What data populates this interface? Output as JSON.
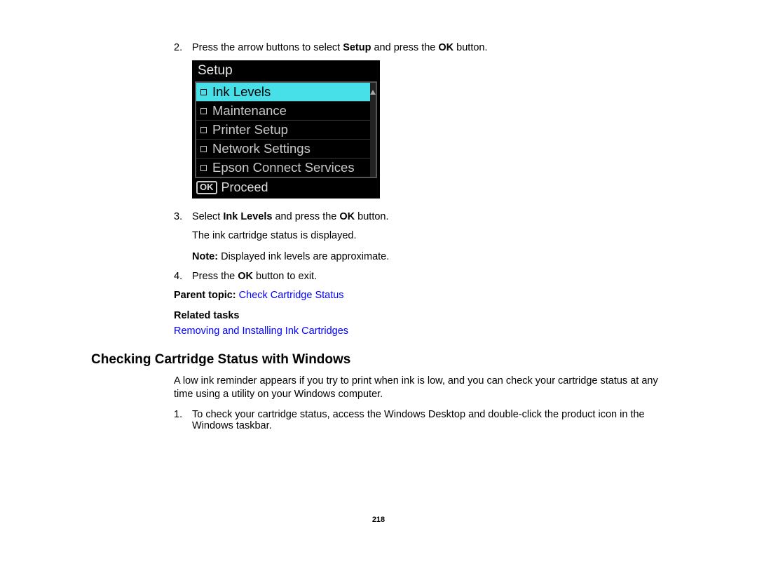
{
  "steps": {
    "s2": {
      "num": "2.",
      "pre": "Press the arrow buttons to select ",
      "b1": "Setup",
      "mid": " and press the ",
      "b2": "OK",
      "post": " button."
    },
    "s3": {
      "num": "3.",
      "pre": "Select ",
      "b1": "Ink Levels",
      "mid": " and press the ",
      "b2": "OK",
      "post": " button.",
      "sub": "The ink cartridge status is displayed.",
      "note_label": "Note:",
      "note_text": " Displayed ink levels are approximate."
    },
    "s4": {
      "num": "4.",
      "pre": "Press the ",
      "b1": "OK",
      "post": " button to exit."
    }
  },
  "parent_topic": {
    "label": "Parent topic: ",
    "link": "Check Cartridge Status"
  },
  "related": {
    "label": "Related tasks",
    "link": "Removing and Installing Ink Cartridges"
  },
  "section2": {
    "heading": "Checking Cartridge Status with Windows",
    "intro": "A low ink reminder appears if you try to print when ink is low, and you can check your cartridge status at any time using a utility on your Windows computer.",
    "step1_num": "1.",
    "step1": "To check your cartridge status, access the Windows Desktop and double-click the product icon in the Windows taskbar."
  },
  "page_number": "218",
  "lcd": {
    "title": "Setup",
    "items": [
      "Ink Levels",
      "Maintenance",
      "Printer Setup",
      "Network Settings",
      "Epson Connect Services"
    ],
    "selected_index": 0,
    "ok_label": "OK",
    "proceed_label": "Proceed",
    "colors": {
      "bg": "#000000",
      "text": "#c8c8c8",
      "selected_bg": "#47e0e8",
      "selected_text": "#000000",
      "border": "#555555"
    }
  }
}
